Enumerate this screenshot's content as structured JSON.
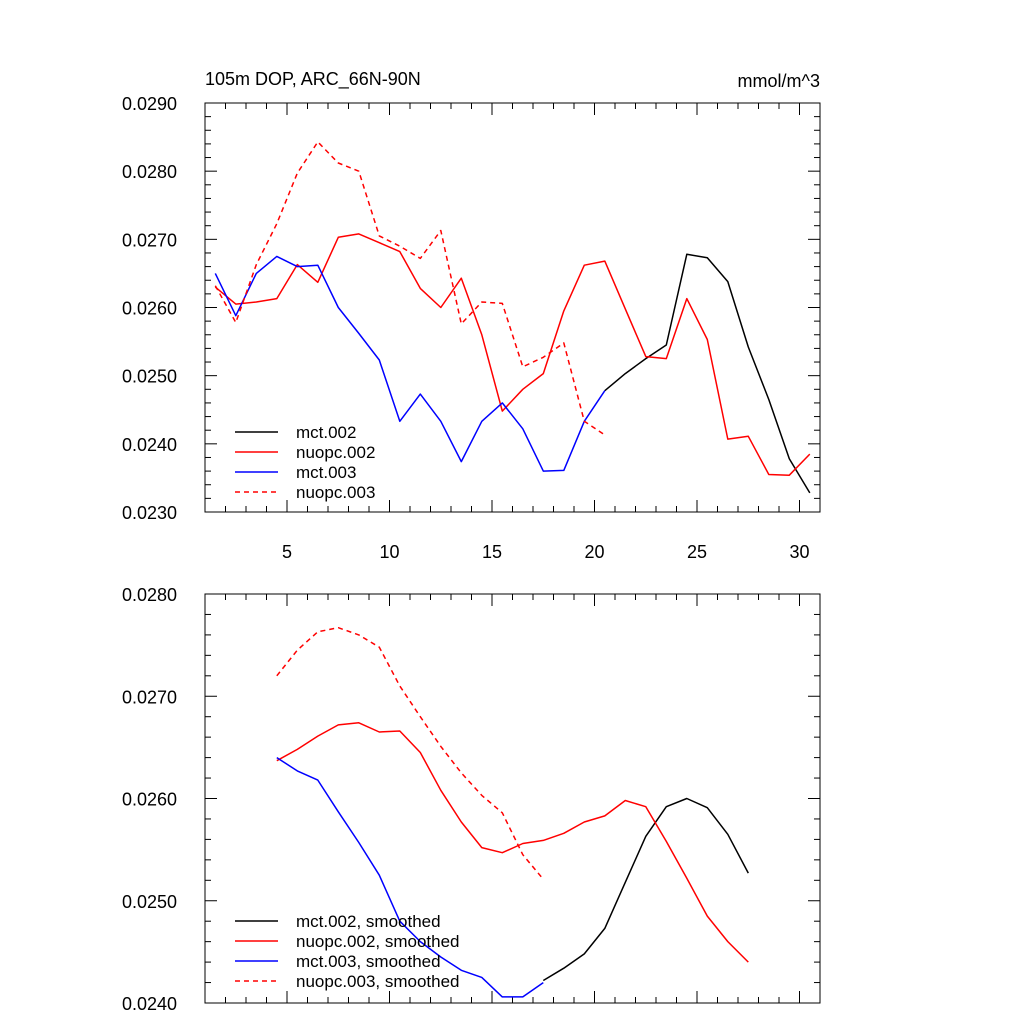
{
  "chart_data": [
    {
      "type": "line",
      "title": "105m DOP, ARC_66N-90N",
      "units": "mmol/m^3",
      "xlabel": "",
      "ylabel": "",
      "xlim": [
        1,
        31
      ],
      "ylim": [
        0.023,
        0.029
      ],
      "xticks": [
        5,
        10,
        15,
        20,
        25,
        30
      ],
      "xtick_labels": [
        "5",
        "10",
        "15",
        "20",
        "25",
        "30"
      ],
      "yticks": [
        0.023,
        0.024,
        0.025,
        0.026,
        0.027,
        0.028,
        0.029
      ],
      "ytick_labels": [
        "0.0230",
        "0.0240",
        "0.0250",
        "0.0260",
        "0.0270",
        "0.0280",
        "0.0290"
      ],
      "legend_position": "bottom-left",
      "series": [
        {
          "name": "mct.002",
          "color": "#000000",
          "dash": "solid",
          "x": [
            20.5,
            21.5,
            22.5,
            23.5,
            24.5,
            25.5,
            26.5,
            27.5,
            28.5,
            29.5,
            30.5
          ],
          "y": [
            0.02478,
            0.02503,
            0.02525,
            0.02545,
            0.02678,
            0.02673,
            0.02638,
            0.02542,
            0.02465,
            0.02378,
            0.02328
          ]
        },
        {
          "name": "nuopc.002",
          "color": "#ff0000",
          "dash": "solid",
          "x": [
            1.5,
            2.5,
            3.5,
            4.5,
            5.5,
            6.5,
            7.5,
            8.5,
            9.5,
            10.5,
            11.5,
            12.5,
            13.5,
            14.5,
            15.5,
            16.5,
            17.5,
            18.5,
            19.5,
            20.5,
            21.5,
            22.5,
            23.5,
            24.5,
            25.5,
            26.5,
            27.5,
            28.5,
            29.5,
            30.5
          ],
          "y": [
            0.0263,
            0.02605,
            0.02608,
            0.02613,
            0.02663,
            0.02637,
            0.02703,
            0.02708,
            0.02695,
            0.02682,
            0.02628,
            0.026,
            0.02643,
            0.0256,
            0.02448,
            0.0248,
            0.02503,
            0.02595,
            0.02662,
            0.02668,
            0.02598,
            0.02528,
            0.02525,
            0.02613,
            0.02553,
            0.02407,
            0.02411,
            0.02355,
            0.02354,
            0.02385
          ]
        },
        {
          "name": "mct.003",
          "color": "#0000ff",
          "dash": "solid",
          "x": [
            1.5,
            2.5,
            3.5,
            4.5,
            5.5,
            6.5,
            7.5,
            8.5,
            9.5,
            10.5,
            11.5,
            12.5,
            13.5,
            14.5,
            15.5,
            16.5,
            17.5,
            18.5,
            19.5,
            20.5
          ],
          "y": [
            0.0265,
            0.02588,
            0.0265,
            0.02675,
            0.0266,
            0.02662,
            0.026,
            0.02562,
            0.02523,
            0.02433,
            0.02473,
            0.02433,
            0.02374,
            0.02433,
            0.0246,
            0.02422,
            0.0236,
            0.02361,
            0.02433,
            0.02478
          ]
        },
        {
          "name": "nuopc.003",
          "color": "#ff0000",
          "dash": "dashed",
          "x": [
            1.5,
            2.5,
            3.5,
            4.5,
            5.5,
            6.5,
            7.5,
            8.5,
            9.5,
            10.5,
            11.5,
            12.5,
            13.5,
            14.5,
            15.5,
            16.5,
            17.5,
            18.5,
            19.5,
            20.5
          ],
          "y": [
            0.02632,
            0.02578,
            0.02663,
            0.02723,
            0.02797,
            0.02843,
            0.02812,
            0.028,
            0.02705,
            0.0269,
            0.02672,
            0.02713,
            0.02576,
            0.02608,
            0.02606,
            0.02513,
            0.02527,
            0.02548,
            0.02433,
            0.02413
          ]
        }
      ]
    },
    {
      "type": "line",
      "title": "",
      "units": "",
      "xlabel": "",
      "ylabel": "",
      "xlim": [
        1,
        31
      ],
      "ylim": [
        0.024,
        0.028
      ],
      "xticks": [
        5,
        10,
        15,
        20,
        25,
        30
      ],
      "xtick_labels": [],
      "yticks": [
        0.024,
        0.025,
        0.026,
        0.027,
        0.028
      ],
      "ytick_labels": [
        "0.0240",
        "0.0250",
        "0.0260",
        "0.0270",
        "0.0280"
      ],
      "legend_position": "bottom-left",
      "series": [
        {
          "name": "mct.002, smoothed",
          "color": "#000000",
          "dash": "solid",
          "x": [
            17.5,
            18.5,
            19.5,
            20.5,
            21.5,
            22.5,
            23.5,
            24.5,
            25.5,
            26.5,
            27.5
          ],
          "y": [
            0.02422,
            0.02434,
            0.02448,
            0.02473,
            0.02518,
            0.02563,
            0.02592,
            0.026,
            0.02591,
            0.02565,
            0.02527
          ]
        },
        {
          "name": "nuopc.002, smoothed",
          "color": "#ff0000",
          "dash": "solid",
          "x": [
            4.5,
            5.5,
            6.5,
            7.5,
            8.5,
            9.5,
            10.5,
            11.5,
            12.5,
            13.5,
            14.5,
            15.5,
            16.5,
            17.5,
            18.5,
            19.5,
            20.5,
            21.5,
            22.5,
            23.5,
            24.5,
            25.5,
            26.5,
            27.5
          ],
          "y": [
            0.02637,
            0.02648,
            0.02661,
            0.02672,
            0.02674,
            0.02665,
            0.02666,
            0.02645,
            0.02608,
            0.02577,
            0.02552,
            0.02547,
            0.02556,
            0.02559,
            0.02566,
            0.02577,
            0.02583,
            0.02598,
            0.02592,
            0.02558,
            0.02522,
            0.02485,
            0.0246,
            0.0244
          ]
        },
        {
          "name": "mct.003, smoothed",
          "color": "#0000ff",
          "dash": "solid",
          "x": [
            4.5,
            5.5,
            6.5,
            7.5,
            8.5,
            9.5,
            10.5,
            11.5,
            12.5,
            13.5,
            14.5,
            15.5,
            16.5,
            17.5
          ],
          "y": [
            0.0264,
            0.02627,
            0.02618,
            0.02587,
            0.02557,
            0.02525,
            0.0248,
            0.0246,
            0.02445,
            0.02432,
            0.02425,
            0.02406,
            0.02406,
            0.0242
          ]
        },
        {
          "name": "nuopc.003, smoothed",
          "color": "#ff0000",
          "dash": "dashed",
          "x": [
            4.5,
            5.5,
            6.5,
            7.5,
            8.5,
            9.5,
            10.5,
            11.5,
            12.5,
            13.5,
            14.5,
            15.5,
            16.5,
            17.5
          ],
          "y": [
            0.0272,
            0.02745,
            0.02763,
            0.02767,
            0.0276,
            0.02748,
            0.0271,
            0.0268,
            0.02651,
            0.02625,
            0.02603,
            0.02586,
            0.02545,
            0.02521
          ]
        }
      ]
    }
  ]
}
